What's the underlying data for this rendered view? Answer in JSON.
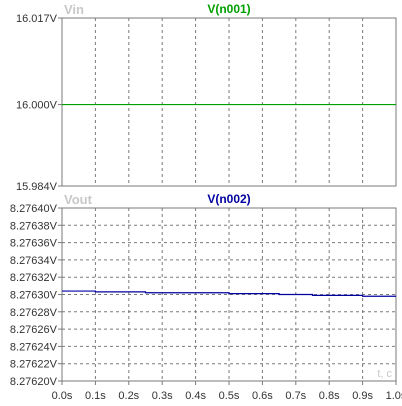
{
  "chart_data": [
    {
      "type": "line",
      "ylabel": "Vin",
      "series": [
        {
          "name": "V(n001)",
          "color": "#00a000",
          "x": [
            0,
            1.0
          ],
          "values": [
            16.0,
            16.0
          ]
        }
      ],
      "ylim": [
        15.984,
        16.017
      ],
      "yticks": [
        "16.017V",
        "16.000V",
        "15.984V"
      ],
      "ytick_values": [
        16.017,
        16.0,
        15.984
      ],
      "xlim": [
        0,
        1.0
      ],
      "grid": true
    },
    {
      "type": "line",
      "ylabel": "Vout",
      "xlabel": "t, c",
      "series": [
        {
          "name": "V(n002)",
          "color": "#0000a0",
          "x": [
            0.0,
            0.1,
            0.1,
            0.25,
            0.25,
            0.5,
            0.5,
            0.65,
            0.65,
            0.75,
            0.75,
            0.9,
            0.9,
            1.0
          ],
          "values": [
            8.276304,
            8.276304,
            8.276303,
            8.276303,
            8.276302,
            8.276302,
            8.276301,
            8.276301,
            8.2763,
            8.2763,
            8.276299,
            8.276299,
            8.276298,
            8.276298
          ]
        }
      ],
      "ylim": [
        8.2762,
        8.2764
      ],
      "yticks": [
        "8.27640V",
        "8.27638V",
        "8.27636V",
        "8.27634V",
        "8.27632V",
        "8.27630V",
        "8.27628V",
        "8.27626V",
        "8.27624V",
        "8.27622V",
        "8.27620V"
      ],
      "xticks": [
        "0.0s",
        "0.1s",
        "0.2s",
        "0.3s",
        "0.4s",
        "0.5s",
        "0.6s",
        "0.7s",
        "0.8s",
        "0.9s",
        "1.0s"
      ],
      "xlim": [
        0,
        1.0
      ],
      "grid": true
    }
  ],
  "colors": {
    "frame": "#7a7a7a",
    "grid": "#7a7a7a",
    "tick_text": "#333333",
    "faded_label": "#c8c8c8"
  }
}
